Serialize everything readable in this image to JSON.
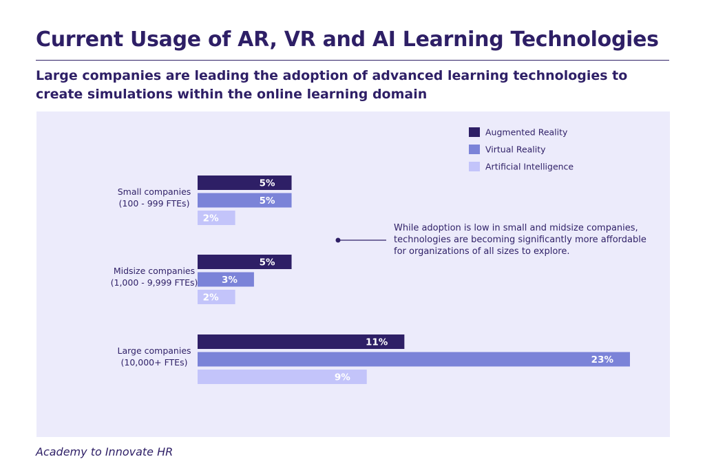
{
  "header": {
    "title": "Current Usage of AR, VR and AI Learning Technologies",
    "subtitle": "Large companies are leading the adoption of advanced learning technologies to create simulations within the online learning domain"
  },
  "annotation": {
    "lines": [
      "While adoption is low in small and midsize companies,",
      "technologies are becoming significantly more affordable",
      "for organizations of all sizes to explore."
    ]
  },
  "footer": {
    "source": "Academy to Innovate HR"
  },
  "colors": {
    "title": "#2e1f66",
    "panel": "#ecebfb",
    "ar": "#2e1f66",
    "vr": "#7b83d8",
    "ai": "#c3c4fa",
    "label_light": "#ffffff"
  },
  "chart_data": {
    "type": "bar",
    "orientation": "horizontal",
    "title": "Current Usage of AR, VR and AI Learning Technologies",
    "categories": [
      [
        "Small companies",
        "(100 - 999 FTEs)"
      ],
      [
        "Midsize companies",
        "(1,000 - 9,999 FTEs)"
      ],
      [
        "Large companies",
        "(10,000+ FTEs)"
      ]
    ],
    "series": [
      {
        "name": "Augmented Reality",
        "key": "ar",
        "values": [
          5,
          5,
          11
        ],
        "labels": [
          "5%",
          "5%",
          "11%"
        ]
      },
      {
        "name": "Virtual Reality",
        "key": "vr",
        "values": [
          5,
          3,
          23
        ],
        "labels": [
          "5%",
          "3%",
          "23%"
        ]
      },
      {
        "name": "Artificial Intelligence",
        "key": "ai",
        "values": [
          2,
          2,
          9
        ],
        "labels": [
          "2%",
          "2%",
          "9%"
        ]
      }
    ],
    "unit": "%",
    "xlim": [
      0,
      23
    ],
    "grid": false,
    "legend_position": "top-right"
  }
}
